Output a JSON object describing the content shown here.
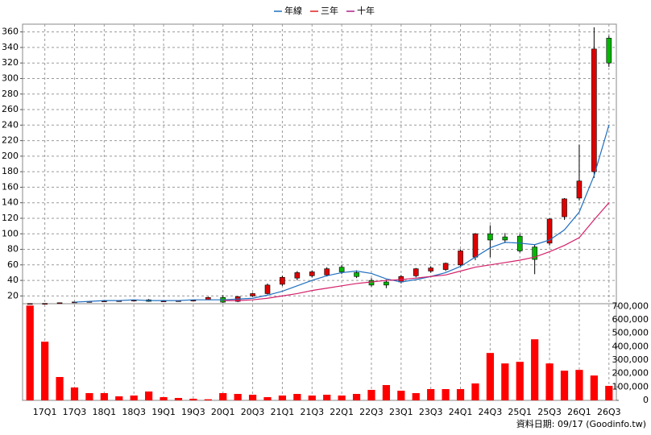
{
  "chart_data": {
    "type": "candlestick",
    "legend": [
      {
        "name": "年線",
        "color": "#1f6fc0"
      },
      {
        "name": "三年",
        "color": "#e02020"
      },
      {
        "name": "十年",
        "color": "#b0208a"
      }
    ],
    "categories": [
      null,
      "17Q1",
      null,
      "17Q3",
      null,
      "18Q1",
      null,
      "18Q3",
      null,
      "19Q1",
      null,
      "19Q3",
      null,
      "20Q1",
      null,
      "20Q3",
      null,
      "21Q1",
      null,
      "21Q3",
      null,
      "22Q1",
      null,
      "22Q3",
      null,
      "23Q1",
      null,
      "23Q3",
      null,
      "24Q1",
      null,
      "24Q3",
      null,
      "25Q1",
      null,
      "25Q3",
      null,
      "26Q1",
      null,
      "26Q3"
    ],
    "up_color": "#e00000",
    "down_color": "#00b800",
    "open": [
      10,
      10,
      11,
      12,
      12.5,
      13,
      13.5,
      14,
      15,
      13,
      13.5,
      14,
      15,
      18,
      13,
      20,
      23,
      35,
      43,
      46,
      47,
      57,
      50,
      40,
      38,
      38,
      46,
      52,
      54,
      60,
      70,
      100,
      96,
      97,
      83,
      88,
      122,
      146,
      180,
      352
    ],
    "high": [
      10.5,
      10.5,
      11.5,
      12.5,
      13,
      14,
      14,
      15,
      16,
      14,
      14,
      15,
      19,
      21,
      20,
      24,
      36,
      46,
      52,
      53,
      57,
      60,
      53,
      43,
      41,
      47,
      56,
      58,
      63,
      80,
      101,
      111,
      101,
      100,
      86,
      120,
      146,
      215,
      366,
      355
    ],
    "low": [
      9.8,
      9.8,
      10.5,
      11.5,
      12,
      12.5,
      13,
      13.5,
      12.5,
      12.5,
      13,
      13.5,
      14.5,
      11,
      12,
      19,
      22,
      33,
      40,
      44,
      45,
      48,
      43,
      32,
      30,
      36,
      44,
      50,
      52,
      58,
      66,
      70,
      88,
      76,
      48,
      85,
      118,
      143,
      172,
      315
    ],
    "close": [
      10.2,
      10.3,
      11.2,
      12.2,
      12.8,
      13.5,
      13.8,
      14.5,
      13,
      13.5,
      13.8,
      14.5,
      18,
      12,
      19,
      23,
      34,
      44,
      50,
      51,
      55,
      51,
      45,
      34,
      34,
      45,
      55,
      56,
      62,
      78,
      100,
      92,
      92,
      78,
      67,
      119,
      145,
      168,
      338,
      320
    ],
    "series": [
      {
        "name": "年線",
        "color": "#1f6fc0",
        "values": [
          null,
          null,
          null,
          12,
          13,
          14,
          14,
          15,
          14,
          14,
          14,
          15,
          15,
          15,
          16,
          17,
          21,
          26,
          33,
          40,
          46,
          50,
          52,
          49,
          42,
          38,
          41,
          45,
          50,
          58,
          70,
          82,
          89,
          88,
          86,
          92,
          105,
          128,
          175,
          240
        ]
      },
      {
        "name": "三年",
        "color": "#d4206a",
        "values": [
          null,
          null,
          null,
          null,
          null,
          null,
          null,
          null,
          null,
          null,
          null,
          null,
          null,
          14,
          14,
          15,
          17,
          20,
          23,
          27,
          30,
          33,
          36,
          38,
          40,
          41,
          43,
          45,
          47,
          52,
          57,
          60,
          63,
          66,
          70,
          77,
          85,
          95,
          118,
          140
        ]
      },
      {
        "name": "十年",
        "color": "#b0208a",
        "values": [
          null,
          null,
          null,
          null,
          null,
          null,
          null,
          null,
          null,
          null,
          null,
          null,
          null,
          null,
          null,
          null,
          null,
          null,
          null,
          null,
          null,
          null,
          null,
          null,
          null,
          null,
          null,
          null,
          null,
          null,
          null,
          null,
          null,
          null,
          null,
          null,
          null,
          null,
          null,
          null
        ]
      }
    ],
    "ylim": [
      10,
      370
    ],
    "yticks": [
      20,
      40,
      60,
      80,
      100,
      120,
      140,
      160,
      180,
      200,
      220,
      240,
      260,
      280,
      300,
      320,
      340,
      360
    ],
    "grid": true,
    "volume": {
      "color": "#ff0000",
      "values": [
        706000,
        437000,
        174000,
        96000,
        54000,
        54000,
        30000,
        36000,
        66000,
        24000,
        18000,
        12000,
        8000,
        54000,
        48000,
        42000,
        24000,
        36000,
        48000,
        36000,
        42000,
        36000,
        48000,
        78000,
        114000,
        72000,
        54000,
        84000,
        84000,
        84000,
        126000,
        353000,
        275000,
        287000,
        455000,
        275000,
        221000,
        227000,
        185000,
        108000
      ],
      "ylim": [
        0,
        720000
      ],
      "yticks": [
        0,
        {
          "value": 100000,
          "label": "100,000"
        },
        {
          "value": 200000,
          "label": "200,000"
        },
        {
          "value": 300000,
          "label": "300,000"
        },
        {
          "value": 400000,
          "label": "400,000"
        },
        {
          "value": 500000,
          "label": "500,000"
        },
        {
          "value": 600000,
          "label": "600,000"
        },
        {
          "value": 700000,
          "label": "700,000"
        }
      ]
    },
    "footnote": "資料日期: 09/17  (Goodinfo.tw)"
  }
}
